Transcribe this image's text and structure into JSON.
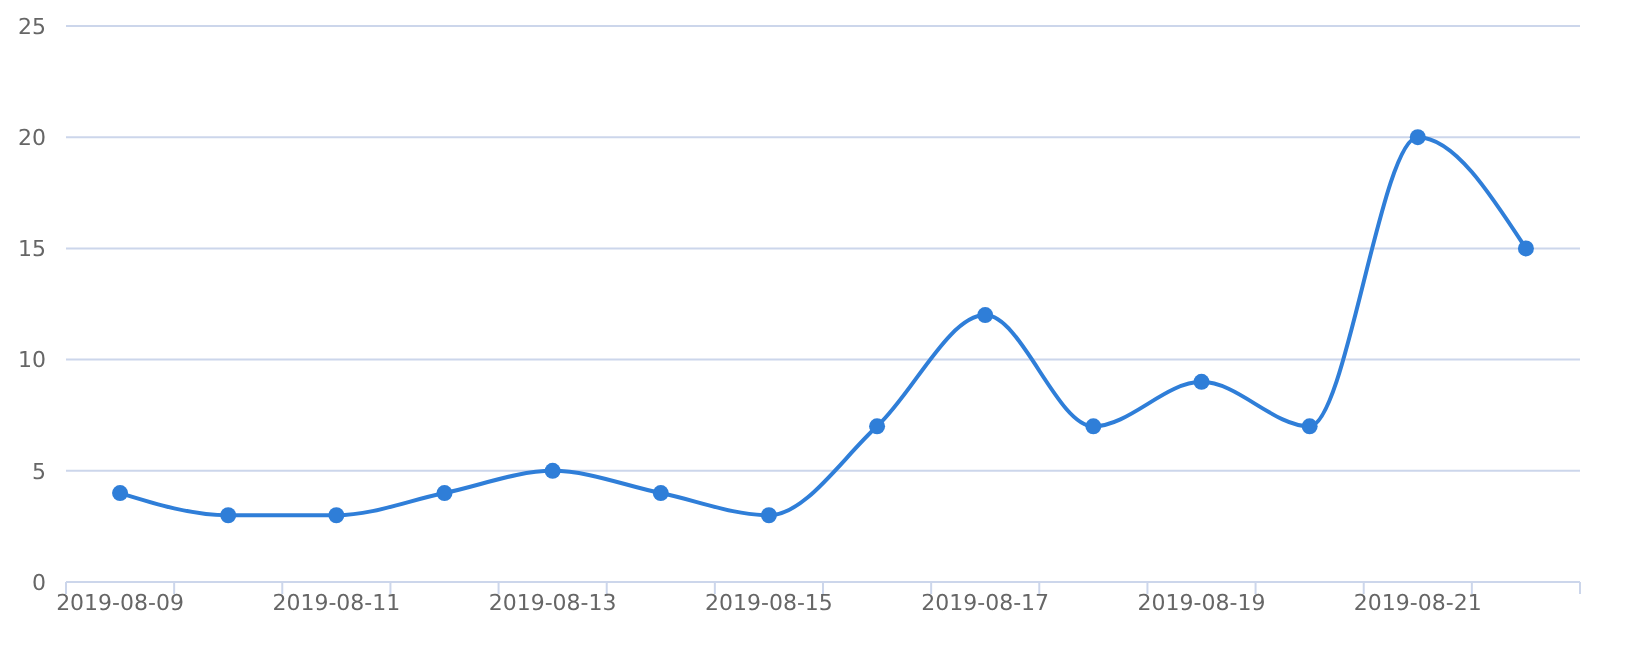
{
  "chart_data": {
    "type": "line",
    "categories": [
      "2019-08-09",
      null,
      "2019-08-11",
      null,
      "2019-08-13",
      null,
      "2019-08-15",
      null,
      "2019-08-17",
      null,
      "2019-08-19",
      null,
      "2019-08-21",
      null
    ],
    "series": [
      {
        "color": "#2f7ed8",
        "values": [
          4,
          3,
          3,
          4,
          5,
          4,
          3,
          7,
          12,
          7,
          9,
          7,
          20,
          15
        ]
      }
    ],
    "ylim": [
      0,
      25
    ],
    "yticks": [
      0,
      5,
      10,
      15,
      20,
      25
    ],
    "grid": "y",
    "marker": "circle",
    "line_style": "solid"
  }
}
